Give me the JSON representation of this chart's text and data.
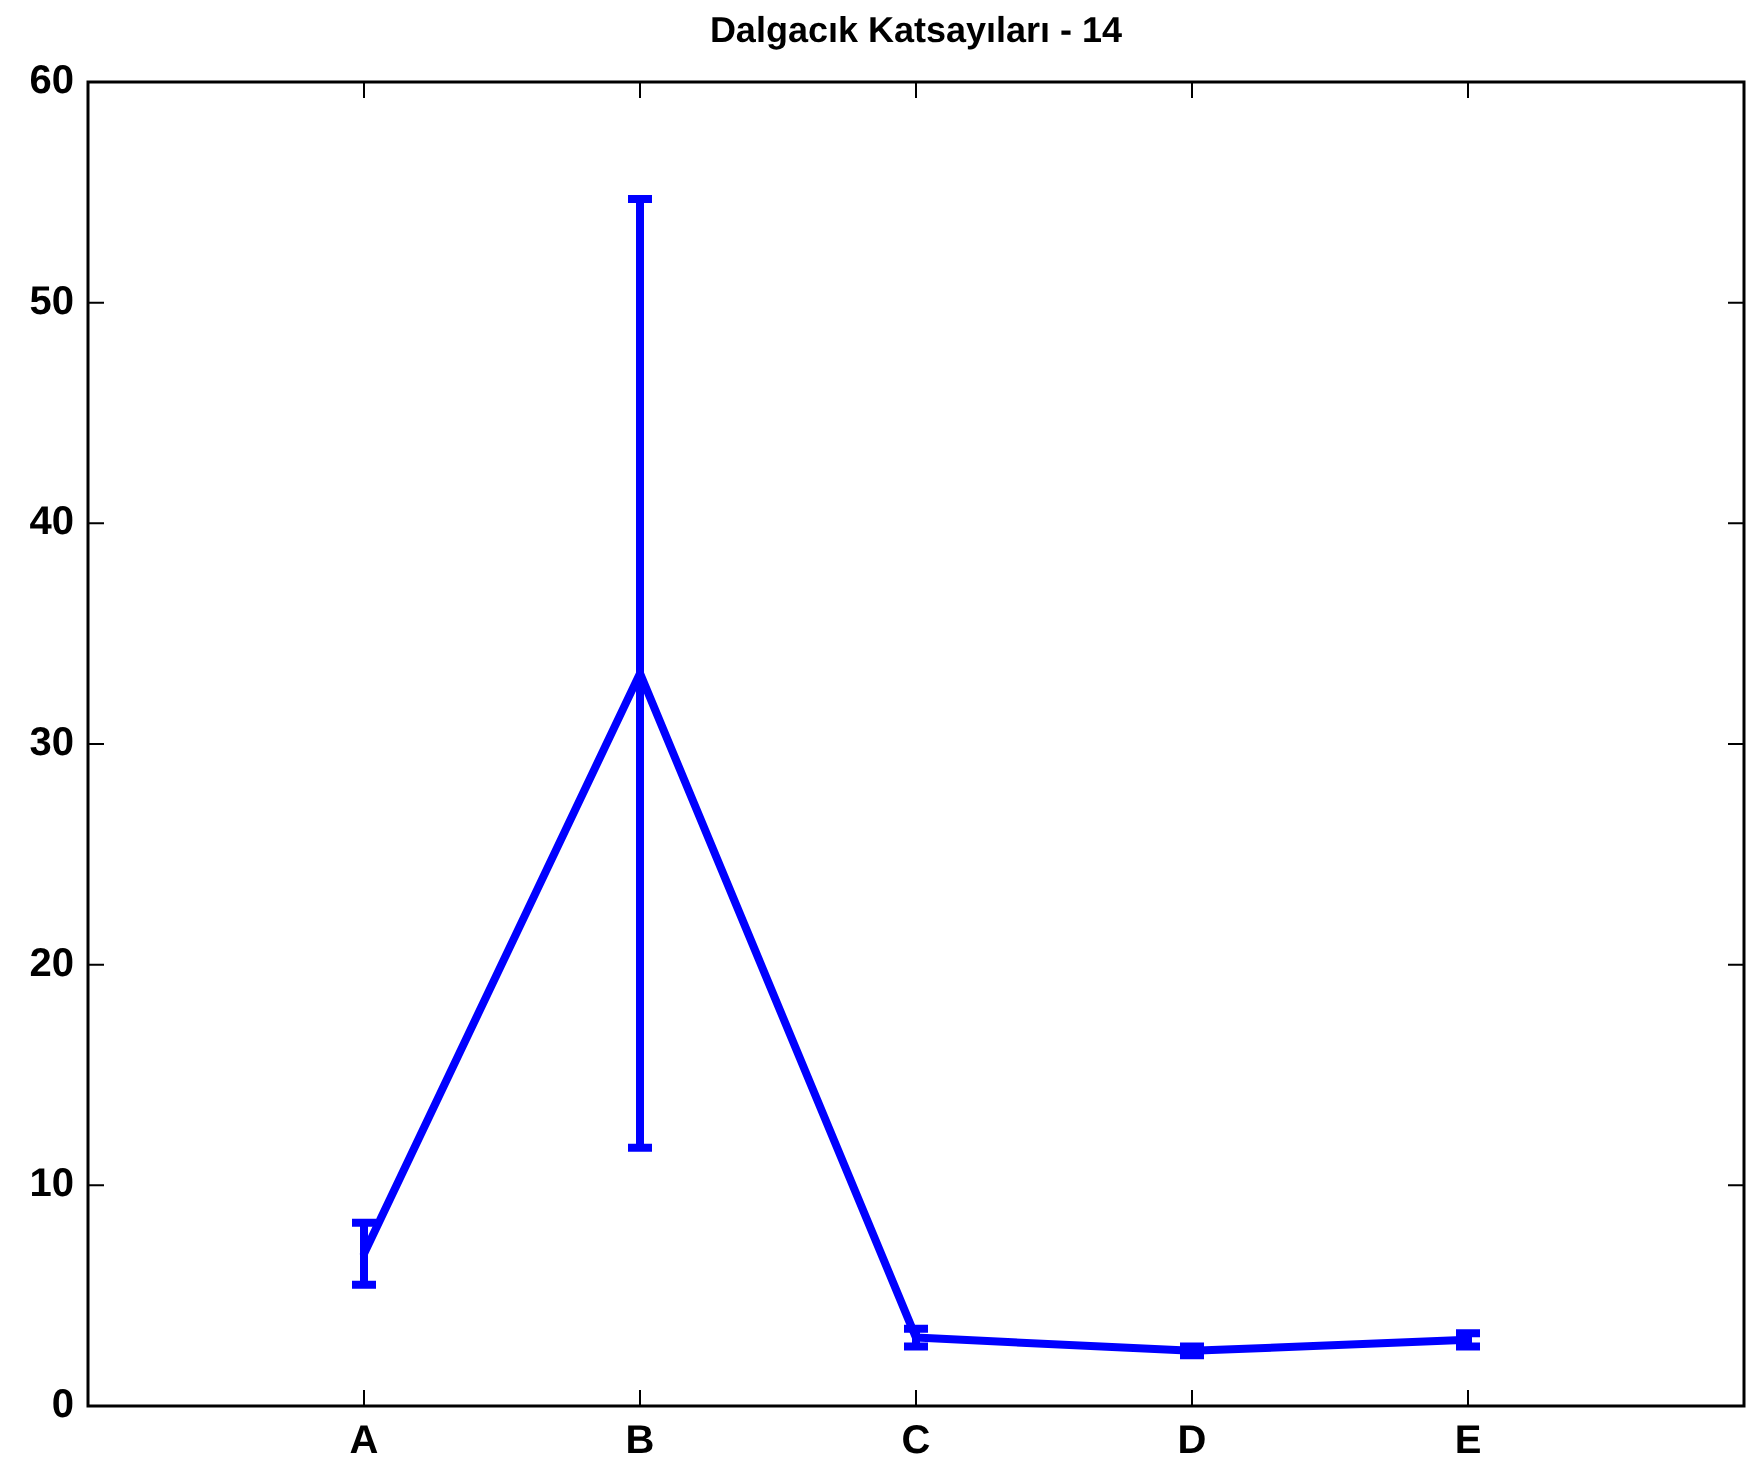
{
  "chart_data": {
    "type": "line",
    "title": "Dalgacık Katsayıları - 14",
    "categories": [
      "A",
      "B",
      "C",
      "D",
      "E"
    ],
    "series": [
      {
        "color": "#0000ff",
        "values": [
          6.9,
          33.2,
          3.1,
          2.5,
          3.0
        ],
        "errors": [
          1.4,
          21.5,
          0.4,
          0.2,
          0.3
        ]
      }
    ],
    "ylim": [
      0,
      60
    ],
    "yticks": [
      0,
      10,
      20,
      30,
      40,
      50,
      60
    ],
    "grid": false,
    "legend": false,
    "marker": "none",
    "line_style": "solid"
  }
}
